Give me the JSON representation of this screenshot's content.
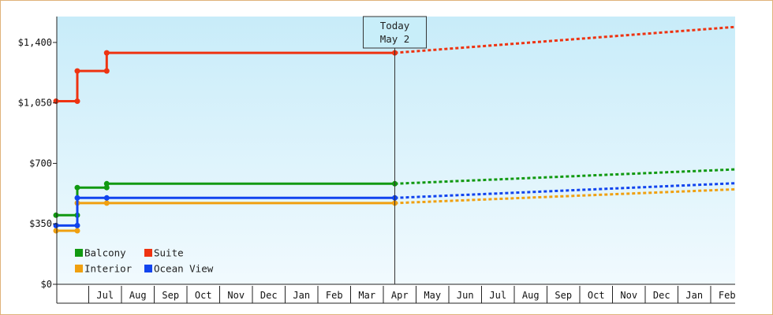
{
  "chart_data": {
    "type": "line",
    "title": "",
    "xlabel": "",
    "ylabel": "",
    "ylim": [
      0,
      1550
    ],
    "yticks": [
      0,
      350,
      700,
      1050,
      1400
    ],
    "ytick_labels": [
      "$0",
      "$350",
      "$700",
      "$1,050",
      "$1,400"
    ],
    "x_months": [
      "",
      "Jul",
      "Aug",
      "Sep",
      "Oct",
      "Nov",
      "Dec",
      "Jan",
      "Feb",
      "Mar",
      "Apr",
      "May",
      "Jun",
      "Jul",
      "Aug",
      "Sep",
      "Oct",
      "Nov",
      "Dec",
      "Jan",
      "Feb",
      ""
    ],
    "today": {
      "title": "Today",
      "date": "May 2",
      "month_index": 10.35
    },
    "grid": false,
    "legend_position": "bottom-left",
    "series": [
      {
        "name": "Balcony",
        "color": "#119911",
        "actual": [
          [
            0.0,
            400
          ],
          [
            0.65,
            400
          ],
          [
            0.65,
            560
          ],
          [
            1.55,
            560
          ],
          [
            1.55,
            582
          ],
          [
            10.35,
            582
          ]
        ],
        "forecast": [
          [
            10.35,
            582
          ],
          [
            20.75,
            665
          ]
        ]
      },
      {
        "name": "Suite",
        "color": "#ee3311",
        "actual": [
          [
            0.0,
            1060
          ],
          [
            0.65,
            1060
          ],
          [
            0.65,
            1235
          ],
          [
            1.55,
            1235
          ],
          [
            1.55,
            1340
          ],
          [
            10.35,
            1340
          ]
        ],
        "forecast": [
          [
            10.35,
            1340
          ],
          [
            20.75,
            1490
          ]
        ]
      },
      {
        "name": "Interior",
        "color": "#f0a010",
        "actual": [
          [
            0.0,
            310
          ],
          [
            0.65,
            310
          ],
          [
            0.65,
            470
          ],
          [
            1.55,
            470
          ],
          [
            10.35,
            470
          ]
        ],
        "forecast": [
          [
            10.35,
            470
          ],
          [
            20.75,
            550
          ]
        ]
      },
      {
        "name": "Ocean View",
        "color": "#1144ee",
        "actual": [
          [
            0.0,
            340
          ],
          [
            0.65,
            340
          ],
          [
            0.65,
            500
          ],
          [
            1.55,
            500
          ],
          [
            10.35,
            500
          ]
        ],
        "forecast": [
          [
            10.35,
            500
          ],
          [
            20.75,
            585
          ]
        ]
      }
    ]
  }
}
